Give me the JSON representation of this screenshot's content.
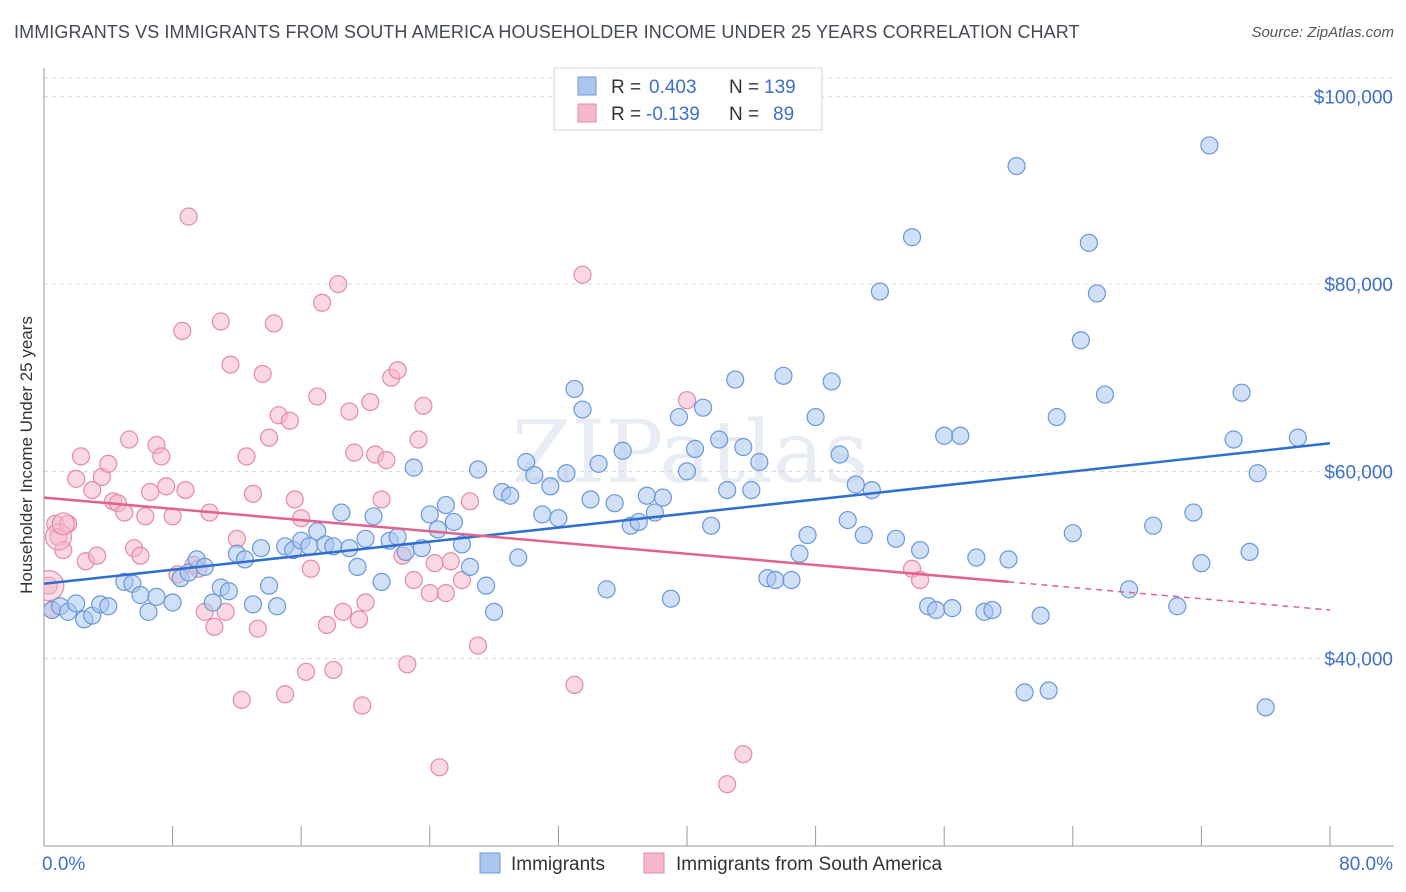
{
  "title": "IMMIGRANTS VS IMMIGRANTS FROM SOUTH AMERICA HOUSEHOLDER INCOME UNDER 25 YEARS CORRELATION CHART",
  "source": "Source: ZipAtlas.com",
  "watermark": "ZIPatlas",
  "colors": {
    "blue_fill": "#a9c6ee",
    "blue_stroke": "#6b98d8",
    "blue_line": "#2f6fce",
    "pink_fill": "#f5b8cb",
    "pink_stroke": "#e48aa8",
    "pink_line": "#e0628e",
    "axis_label": "#3d6fc9",
    "grid": "#d8d8d8"
  },
  "legend": {
    "rows": [
      {
        "r_label": "R =",
        "r_value": "0.403",
        "n_label": "N =",
        "n_value": "139",
        "series": "blue"
      },
      {
        "r_label": "R =",
        "r_value": "-0.139",
        "n_label": "N =",
        "n_value": "89",
        "series": "pink"
      }
    ]
  },
  "bottom_legend": [
    "Immigrants",
    "Immigrants from South America"
  ],
  "chart_data": {
    "type": "scatter",
    "title": "IMMIGRANTS VS IMMIGRANTS FROM SOUTH AMERICA HOUSEHOLDER INCOME UNDER 25 YEARS CORRELATION CHART",
    "xlabel": "",
    "ylabel": "Householder Income Under 25 years",
    "xlim": [
      0,
      80
    ],
    "ylim": [
      20000,
      102000
    ],
    "x_tick_labels": [
      "0.0%",
      "80.0%"
    ],
    "y_ticks": [
      40000,
      60000,
      80000,
      100000
    ],
    "y_tick_labels": [
      "$40,000",
      "$60,000",
      "$80,000",
      "$100,000"
    ],
    "series": [
      {
        "name": "Immigrants",
        "color": "blue",
        "trend": {
          "x": [
            0,
            80
          ],
          "y": [
            48000,
            63000
          ],
          "solid_until": 80
        },
        "points": [
          [
            0.5,
            45200
          ],
          [
            1.0,
            45600
          ],
          [
            1.5,
            45000
          ],
          [
            2.0,
            45900
          ],
          [
            2.5,
            44200
          ],
          [
            3.0,
            44600
          ],
          [
            3.5,
            45800
          ],
          [
            4.0,
            45600
          ],
          [
            5.0,
            48200
          ],
          [
            5.5,
            48000
          ],
          [
            6.0,
            46800
          ],
          [
            6.5,
            45000
          ],
          [
            7.0,
            46600
          ],
          [
            8.0,
            46000
          ],
          [
            8.5,
            48600
          ],
          [
            9.0,
            49200
          ],
          [
            9.5,
            50600
          ],
          [
            10.0,
            49800
          ],
          [
            10.5,
            46000
          ],
          [
            11.0,
            47600
          ],
          [
            11.5,
            47200
          ],
          [
            12.0,
            51200
          ],
          [
            12.5,
            50600
          ],
          [
            13.0,
            45800
          ],
          [
            13.5,
            51800
          ],
          [
            14.0,
            47800
          ],
          [
            14.5,
            45600
          ],
          [
            15.0,
            52000
          ],
          [
            15.5,
            51600
          ],
          [
            16.0,
            52600
          ],
          [
            16.5,
            52000
          ],
          [
            17.0,
            53600
          ],
          [
            17.5,
            52200
          ],
          [
            18.0,
            52000
          ],
          [
            18.5,
            55600
          ],
          [
            19.0,
            51800
          ],
          [
            19.5,
            49800
          ],
          [
            20.0,
            52800
          ],
          [
            20.5,
            55200
          ],
          [
            21.0,
            48200
          ],
          [
            21.5,
            52600
          ],
          [
            22.0,
            53000
          ],
          [
            22.5,
            51400
          ],
          [
            23.0,
            60400
          ],
          [
            23.5,
            51800
          ],
          [
            24.0,
            55400
          ],
          [
            24.5,
            53800
          ],
          [
            25.0,
            56400
          ],
          [
            25.5,
            54600
          ],
          [
            26.0,
            52200
          ],
          [
            26.5,
            49800
          ],
          [
            27.0,
            60200
          ],
          [
            27.5,
            47800
          ],
          [
            28.0,
            45000
          ],
          [
            28.5,
            57800
          ],
          [
            29.0,
            57400
          ],
          [
            29.5,
            50800
          ],
          [
            30.0,
            61000
          ],
          [
            30.5,
            59600
          ],
          [
            31.0,
            55400
          ],
          [
            31.5,
            58400
          ],
          [
            32.0,
            55000
          ],
          [
            32.5,
            59800
          ],
          [
            33.0,
            68800
          ],
          [
            33.5,
            66600
          ],
          [
            34.0,
            57000
          ],
          [
            34.5,
            60800
          ],
          [
            35.0,
            47400
          ],
          [
            35.5,
            56600
          ],
          [
            36.0,
            62200
          ],
          [
            36.5,
            54200
          ],
          [
            37.0,
            54600
          ],
          [
            37.5,
            57400
          ],
          [
            38.0,
            55600
          ],
          [
            38.5,
            57200
          ],
          [
            39.0,
            46400
          ],
          [
            39.5,
            65800
          ],
          [
            40.0,
            60000
          ],
          [
            40.5,
            62400
          ],
          [
            41.0,
            66800
          ],
          [
            41.5,
            54200
          ],
          [
            42.0,
            63400
          ],
          [
            42.5,
            58000
          ],
          [
            43.0,
            69800
          ],
          [
            43.5,
            62600
          ],
          [
            44.0,
            58000
          ],
          [
            44.5,
            61000
          ],
          [
            45.0,
            48600
          ],
          [
            45.5,
            48400
          ],
          [
            46.0,
            70200
          ],
          [
            47.0,
            51200
          ],
          [
            47.5,
            53200
          ],
          [
            48.0,
            65800
          ],
          [
            49.0,
            69600
          ],
          [
            49.5,
            61800
          ],
          [
            50.0,
            54800
          ],
          [
            50.5,
            58600
          ],
          [
            51.0,
            53200
          ],
          [
            51.5,
            58000
          ],
          [
            52.0,
            79200
          ],
          [
            53.0,
            52800
          ],
          [
            54.0,
            85000
          ],
          [
            54.5,
            51600
          ],
          [
            55.0,
            45600
          ],
          [
            55.5,
            45200
          ],
          [
            56.0,
            63800
          ],
          [
            56.5,
            45400
          ],
          [
            57.0,
            63800
          ],
          [
            58.0,
            50800
          ],
          [
            58.5,
            45000
          ],
          [
            59.0,
            45200
          ],
          [
            60.0,
            50600
          ],
          [
            60.5,
            92600
          ],
          [
            61.0,
            36400
          ],
          [
            62.0,
            44600
          ],
          [
            62.5,
            36600
          ],
          [
            63.0,
            65800
          ],
          [
            64.0,
            53400
          ],
          [
            64.5,
            74000
          ],
          [
            65.0,
            84400
          ],
          [
            65.5,
            79000
          ],
          [
            66.0,
            68200
          ],
          [
            67.5,
            47400
          ],
          [
            69.0,
            54200
          ],
          [
            70.5,
            45600
          ],
          [
            71.5,
            55600
          ],
          [
            72.0,
            50200
          ],
          [
            72.5,
            94800
          ],
          [
            74.0,
            63400
          ],
          [
            74.5,
            68400
          ],
          [
            75.0,
            51400
          ],
          [
            75.5,
            59800
          ],
          [
            76.0,
            34800
          ],
          [
            78.0,
            63600
          ],
          [
            46.5,
            48400
          ]
        ]
      },
      {
        "name": "Immigrants from South America",
        "color": "pink",
        "trend": {
          "x": [
            0,
            80
          ],
          "y": [
            57200,
            45200
          ],
          "solid_until": 60
        },
        "points": [
          [
            0.3,
            47800
          ],
          [
            0.5,
            45200
          ],
          [
            0.7,
            54400
          ],
          [
            0.9,
            53000
          ],
          [
            1.2,
            51600
          ],
          [
            1.5,
            54400
          ],
          [
            2.0,
            59200
          ],
          [
            2.3,
            61600
          ],
          [
            2.6,
            50400
          ],
          [
            3.0,
            58000
          ],
          [
            3.3,
            51000
          ],
          [
            3.6,
            59400
          ],
          [
            4.0,
            60800
          ],
          [
            4.3,
            56800
          ],
          [
            4.6,
            56600
          ],
          [
            5.0,
            55600
          ],
          [
            5.3,
            63400
          ],
          [
            5.6,
            51800
          ],
          [
            6.0,
            51000
          ],
          [
            6.3,
            55200
          ],
          [
            6.6,
            57800
          ],
          [
            7.0,
            62800
          ],
          [
            7.3,
            61600
          ],
          [
            7.6,
            58400
          ],
          [
            8.0,
            55200
          ],
          [
            8.3,
            49000
          ],
          [
            8.6,
            75000
          ],
          [
            8.8,
            58000
          ],
          [
            9.0,
            87200
          ],
          [
            9.3,
            50000
          ],
          [
            9.6,
            49600
          ],
          [
            10.0,
            45000
          ],
          [
            10.3,
            55600
          ],
          [
            10.6,
            43400
          ],
          [
            11.0,
            76000
          ],
          [
            11.3,
            45000
          ],
          [
            11.6,
            71400
          ],
          [
            12.0,
            52800
          ],
          [
            12.3,
            35600
          ],
          [
            12.6,
            61600
          ],
          [
            13.0,
            57600
          ],
          [
            13.3,
            43200
          ],
          [
            13.6,
            70400
          ],
          [
            14.0,
            63600
          ],
          [
            14.3,
            75800
          ],
          [
            14.6,
            66000
          ],
          [
            15.0,
            36200
          ],
          [
            15.3,
            65400
          ],
          [
            15.6,
            57000
          ],
          [
            16.0,
            55000
          ],
          [
            16.3,
            38600
          ],
          [
            16.6,
            49600
          ],
          [
            17.0,
            68000
          ],
          [
            17.3,
            78000
          ],
          [
            17.6,
            43600
          ],
          [
            18.0,
            38800
          ],
          [
            18.3,
            80000
          ],
          [
            18.6,
            45000
          ],
          [
            19.0,
            66400
          ],
          [
            19.3,
            62000
          ],
          [
            19.6,
            44200
          ],
          [
            19.8,
            35000
          ],
          [
            20.0,
            46000
          ],
          [
            20.3,
            67400
          ],
          [
            20.6,
            61800
          ],
          [
            21.0,
            57000
          ],
          [
            21.3,
            61200
          ],
          [
            21.6,
            70000
          ],
          [
            22.0,
            70800
          ],
          [
            22.3,
            51000
          ],
          [
            22.6,
            39400
          ],
          [
            23.0,
            48400
          ],
          [
            23.3,
            63400
          ],
          [
            23.6,
            67000
          ],
          [
            24.0,
            47000
          ],
          [
            24.3,
            50200
          ],
          [
            24.6,
            28400
          ],
          [
            25.0,
            47000
          ],
          [
            25.3,
            50400
          ],
          [
            26.0,
            48400
          ],
          [
            26.5,
            56800
          ],
          [
            27.0,
            41400
          ],
          [
            33.5,
            81000
          ],
          [
            33.0,
            37200
          ],
          [
            40.0,
            67600
          ],
          [
            42.5,
            26600
          ],
          [
            43.5,
            29800
          ],
          [
            54.0,
            49600
          ],
          [
            54.5,
            48400
          ]
        ]
      }
    ]
  }
}
